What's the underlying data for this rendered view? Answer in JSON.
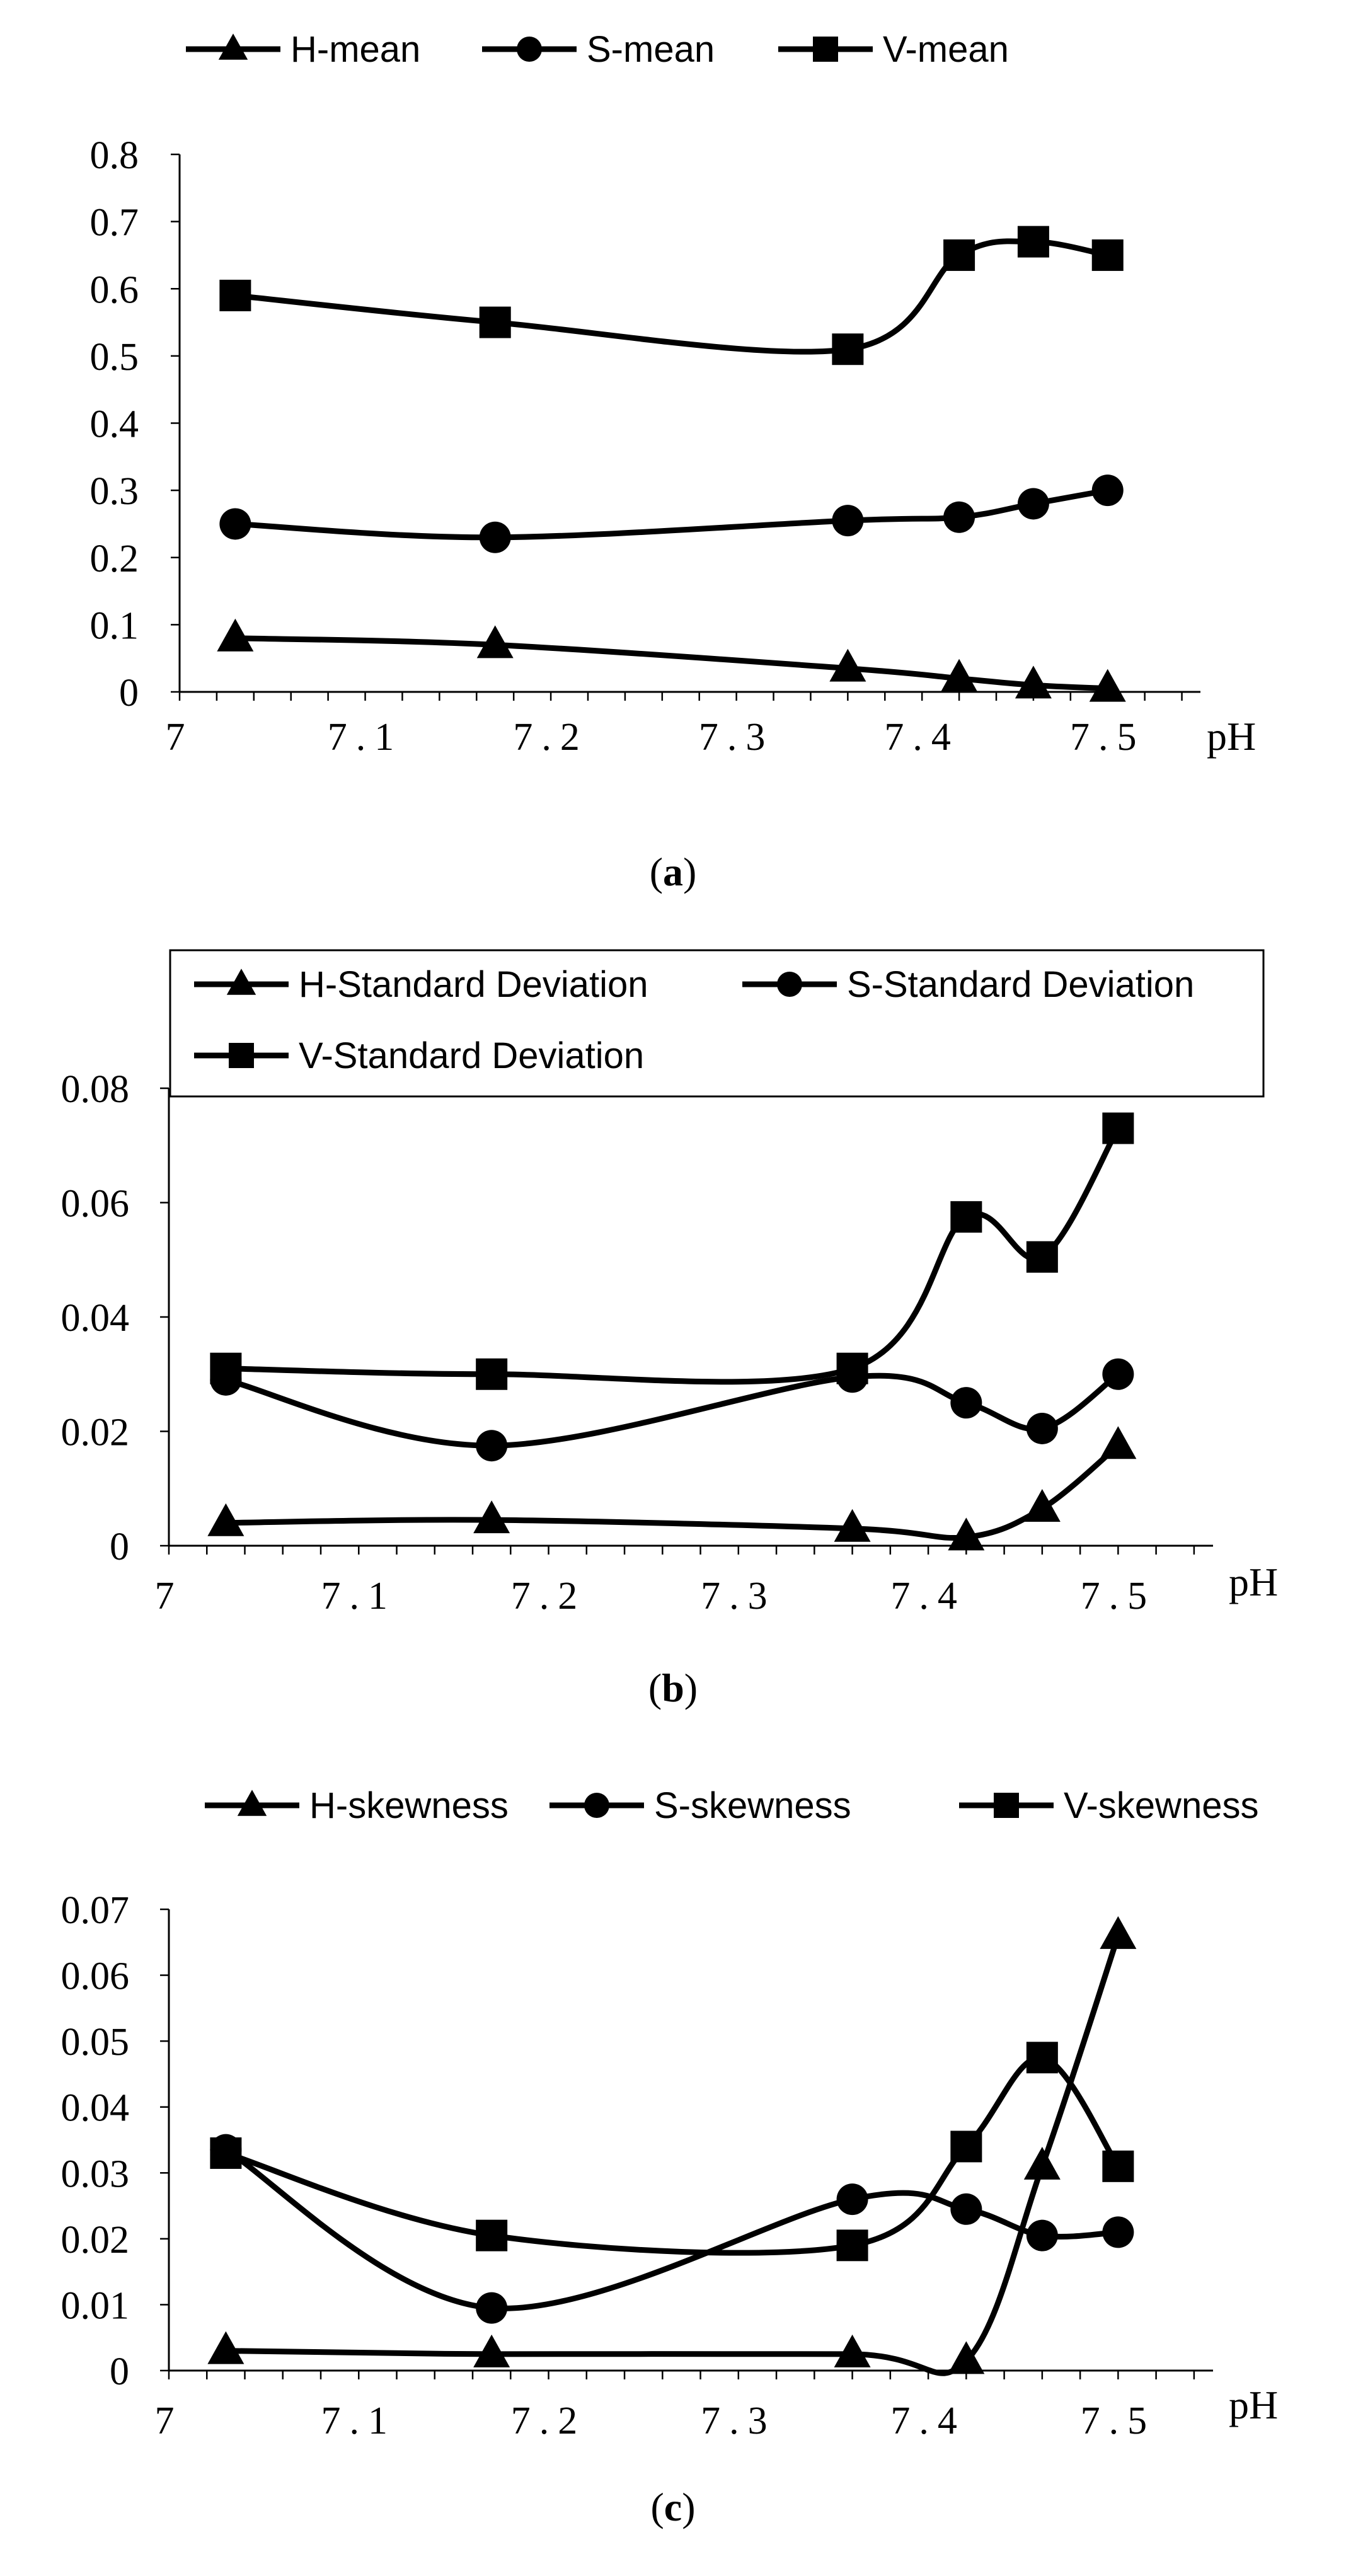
{
  "chart_data": [
    {
      "type": "line",
      "panel_label": "a",
      "title": "",
      "xlabel": "pH",
      "ylabel": "",
      "xlim": [
        7,
        7.55
      ],
      "ylim": [
        0,
        0.8
      ],
      "grid": false,
      "legend_position": "top",
      "x_ticks": [
        7,
        7.1,
        7.2,
        7.3,
        7.4,
        7.5
      ],
      "x_tick_labels": [
        "7",
        "7.1",
        "7.2",
        "7.3",
        "7.4",
        "7.5"
      ],
      "y_ticks": [
        0,
        0.1,
        0.2,
        0.3,
        0.4,
        0.5,
        0.6,
        0.7,
        0.8
      ],
      "y_tick_labels": [
        "0",
        "0.1",
        "0.2",
        "0.3",
        "0.4",
        "0.5",
        "0.6",
        "0.7",
        "0.8"
      ],
      "x": [
        7.03,
        7.17,
        7.36,
        7.42,
        7.46,
        7.5
      ],
      "series": [
        {
          "name": "H-mean",
          "marker": "triangle",
          "values": [
            0.08,
            0.07,
            0.035,
            0.02,
            0.01,
            0.005
          ]
        },
        {
          "name": "S-mean",
          "marker": "circle",
          "values": [
            0.25,
            0.23,
            0.255,
            0.26,
            0.28,
            0.3
          ]
        },
        {
          "name": "V-mean",
          "marker": "square",
          "values": [
            0.59,
            0.55,
            0.51,
            0.65,
            0.67,
            0.65
          ]
        }
      ]
    },
    {
      "type": "line",
      "panel_label": "b",
      "title": "",
      "xlabel": "pH",
      "ylabel": "",
      "xlim": [
        7,
        7.55
      ],
      "ylim": [
        0,
        0.08
      ],
      "grid": false,
      "legend_position": "top (boxed)",
      "x_ticks": [
        7,
        7.1,
        7.2,
        7.3,
        7.4,
        7.5
      ],
      "x_tick_labels": [
        "7",
        "7.1",
        "7.2",
        "7.3",
        "7.4",
        "7.5"
      ],
      "y_ticks": [
        0,
        0.02,
        0.04,
        0.06,
        0.08
      ],
      "y_tick_labels": [
        "0",
        "0.02",
        "0.04",
        "0.06",
        "0.08"
      ],
      "x": [
        7.03,
        7.17,
        7.36,
        7.42,
        7.46,
        7.5
      ],
      "series": [
        {
          "name": "H-Standard Deviation",
          "marker": "triangle",
          "values": [
            0.004,
            0.0045,
            0.003,
            0.0015,
            0.0065,
            0.0175
          ]
        },
        {
          "name": "S-Standard Deviation",
          "marker": "circle",
          "values": [
            0.029,
            0.0175,
            0.0295,
            0.025,
            0.0205,
            0.03
          ]
        },
        {
          "name": "V-Standard Deviation",
          "marker": "square",
          "values": [
            0.031,
            0.03,
            0.031,
            0.0575,
            0.0505,
            0.073
          ]
        }
      ]
    },
    {
      "type": "line",
      "panel_label": "c",
      "title": "",
      "xlabel": "pH",
      "ylabel": "",
      "xlim": [
        7,
        7.55
      ],
      "ylim": [
        0,
        0.07
      ],
      "grid": false,
      "legend_position": "top",
      "x_ticks": [
        7,
        7.1,
        7.2,
        7.3,
        7.4,
        7.5
      ],
      "x_tick_labels": [
        "7",
        "7.1",
        "7.2",
        "7.3",
        "7.4",
        "7.5"
      ],
      "y_ticks": [
        0,
        0.01,
        0.02,
        0.03,
        0.04,
        0.05,
        0.06,
        0.07
      ],
      "y_tick_labels": [
        "0",
        "0.01",
        "0.02",
        "0.03",
        "0.04",
        "0.05",
        "0.06",
        "0.07"
      ],
      "x": [
        7.03,
        7.17,
        7.36,
        7.42,
        7.46,
        7.5
      ],
      "series": [
        {
          "name": "H-skewness",
          "marker": "triangle",
          "values": [
            0.003,
            0.0025,
            0.0025,
            0.0015,
            0.031,
            0.066
          ]
        },
        {
          "name": "S-skewness",
          "marker": "circle",
          "values": [
            0.0335,
            0.0095,
            0.026,
            0.0245,
            0.0205,
            0.021
          ]
        },
        {
          "name": "V-skewness",
          "marker": "square",
          "values": [
            0.033,
            0.0205,
            0.019,
            0.034,
            0.0475,
            0.031
          ]
        }
      ]
    }
  ]
}
